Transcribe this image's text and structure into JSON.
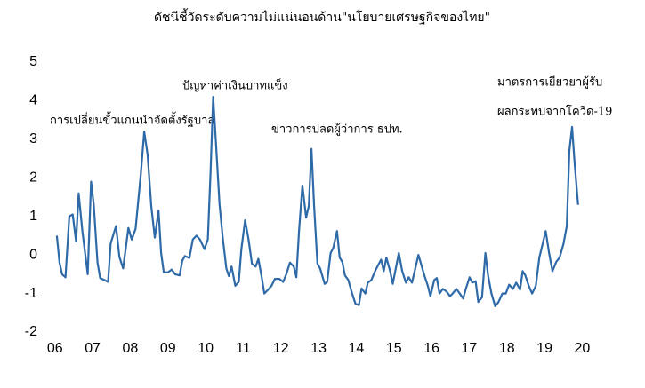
{
  "chart_data": {
    "type": "line",
    "title": "ดัชนีชี้วัดระดับความไม่แน่นอนด้าน\"นโยบายเศรษฐกิจของไทย\"",
    "annotations": [
      "การเปลี่ยนขั้วแกนนำจัดตั้งรัฐบาล",
      "ปัญหาค่าเงินบาทแข็ง",
      "ข่าวการปลดผู้ว่าการ ธปท.",
      "มาตรการเยียวยาผู้รับ",
      "ผลกระทบจากโควิด-19"
    ],
    "x": [
      2006.05,
      2006.12,
      2006.19,
      2006.28,
      2006.38,
      2006.47,
      2006.56,
      2006.63,
      2006.73,
      2006.87,
      2006.96,
      2007.03,
      2007.13,
      2007.2,
      2007.31,
      2007.41,
      2007.48,
      2007.62,
      2007.71,
      2007.81,
      2007.95,
      2008.04,
      2008.14,
      2008.28,
      2008.37,
      2008.46,
      2008.56,
      2008.65,
      2008.75,
      2008.82,
      2008.89,
      2009.0,
      2009.1,
      2009.19,
      2009.31,
      2009.38,
      2009.45,
      2009.57,
      2009.66,
      2009.76,
      2009.85,
      2009.97,
      2010.06,
      2010.13,
      2010.2,
      2010.27,
      2010.37,
      2010.46,
      2010.55,
      2010.62,
      2010.69,
      2010.79,
      2010.88,
      2010.95,
      2011.05,
      2011.14,
      2011.23,
      2011.33,
      2011.4,
      2011.49,
      2011.56,
      2011.68,
      2011.75,
      2011.84,
      2011.96,
      2012.06,
      2012.15,
      2012.24,
      2012.34,
      2012.41,
      2012.48,
      2012.57,
      2012.67,
      2012.74,
      2012.81,
      2012.88,
      2012.97,
      2013.04,
      2013.16,
      2013.23,
      2013.32,
      2013.39,
      2013.49,
      2013.56,
      2013.63,
      2013.7,
      2013.79,
      2013.89,
      2013.98,
      2014.07,
      2014.14,
      2014.24,
      2014.31,
      2014.4,
      2014.5,
      2014.59,
      2014.66,
      2014.73,
      2014.8,
      2014.9,
      2014.97,
      2015.06,
      2015.13,
      2015.22,
      2015.32,
      2015.39,
      2015.48,
      2015.58,
      2015.65,
      2015.74,
      2015.81,
      2015.9,
      2015.97,
      2016.07,
      2016.14,
      2016.21,
      2016.3,
      2016.4,
      2016.49,
      2016.56,
      2016.66,
      2016.75,
      2016.84,
      2016.91,
      2017.01,
      2017.08,
      2017.17,
      2017.24,
      2017.34,
      2017.43,
      2017.5,
      2017.59,
      2017.69,
      2017.78,
      2017.88,
      2017.97,
      2018.06,
      2018.16,
      2018.25,
      2018.35,
      2018.42,
      2018.49,
      2018.58,
      2018.67,
      2018.77,
      2018.86,
      2019.03,
      2019.12,
      2019.21,
      2019.31,
      2019.4,
      2019.5,
      2019.59,
      2019.66,
      2019.73,
      2019.8,
      2019.89
    ],
    "series": [
      {
        "color": "#2e6aa8",
        "values": [
          0.5,
          -0.2,
          -0.5,
          -0.58,
          1.0,
          1.05,
          0.35,
          1.6,
          0.6,
          -0.5,
          1.9,
          1.3,
          -0.2,
          -0.6,
          -0.65,
          -0.7,
          0.3,
          0.75,
          -0.05,
          -0.35,
          0.7,
          0.4,
          0.68,
          2.1,
          3.2,
          2.6,
          1.25,
          0.45,
          1.15,
          0.05,
          -0.45,
          -0.45,
          -0.38,
          -0.5,
          -0.53,
          -0.15,
          -0.03,
          -0.08,
          0.4,
          0.5,
          0.4,
          0.15,
          0.4,
          2.1,
          4.1,
          3.0,
          1.3,
          0.4,
          -0.35,
          -0.55,
          -0.3,
          -0.8,
          -0.7,
          0.15,
          0.9,
          0.4,
          -0.23,
          -0.3,
          -0.1,
          -0.58,
          -1.0,
          -0.88,
          -0.8,
          -0.62,
          -0.62,
          -0.7,
          -0.48,
          -0.2,
          -0.3,
          -0.58,
          0.62,
          1.8,
          0.97,
          1.27,
          2.75,
          1.3,
          -0.23,
          -0.35,
          -0.75,
          -0.7,
          0.05,
          0.18,
          0.62,
          -0.07,
          -0.18,
          -0.53,
          -0.65,
          -1.0,
          -1.27,
          -1.3,
          -0.87,
          -1.0,
          -0.72,
          -0.65,
          -0.42,
          -0.25,
          -0.12,
          -0.42,
          -0.07,
          -0.42,
          -0.75,
          -0.3,
          0.05,
          -0.42,
          -0.72,
          -0.58,
          -0.72,
          -0.3,
          0,
          -0.3,
          -0.53,
          -0.8,
          -1.07,
          -0.65,
          -0.6,
          -1.0,
          -0.88,
          -0.95,
          -1.07,
          -1.0,
          -0.88,
          -1.0,
          -1.13,
          -0.88,
          -0.58,
          -0.72,
          -0.68,
          -1.22,
          -1.1,
          0.05,
          -0.53,
          -1.0,
          -1.33,
          -1.22,
          -1.0,
          -1.0,
          -0.77,
          -0.88,
          -0.72,
          -0.9,
          -0.42,
          -0.53,
          -0.8,
          -1.0,
          -0.8,
          -0.07,
          0.62,
          0.05,
          -0.42,
          -0.18,
          -0.07,
          0.28,
          0.75,
          2.7,
          3.32,
          2.35,
          1.3
        ]
      }
    ],
    "xlim": [
      2005.84,
      2020.25
    ],
    "ylim": [
      -2,
      5
    ],
    "xticks": [
      {
        "value": 2006,
        "label": "06"
      },
      {
        "value": 2007,
        "label": "07"
      },
      {
        "value": 2008,
        "label": "08"
      },
      {
        "value": 2009,
        "label": "09"
      },
      {
        "value": 2010,
        "label": "10"
      },
      {
        "value": 2011,
        "label": "11"
      },
      {
        "value": 2012,
        "label": "12"
      },
      {
        "value": 2013,
        "label": "13"
      },
      {
        "value": 2014,
        "label": "14"
      },
      {
        "value": 2015,
        "label": "15"
      },
      {
        "value": 2016,
        "label": "16"
      },
      {
        "value": 2017,
        "label": "17"
      },
      {
        "value": 2018,
        "label": "18"
      },
      {
        "value": 2019,
        "label": "19"
      },
      {
        "value": 2020,
        "label": "20"
      }
    ],
    "yticks": [
      -2,
      -1,
      0,
      1,
      2,
      3,
      4,
      5
    ],
    "grid": false
  }
}
